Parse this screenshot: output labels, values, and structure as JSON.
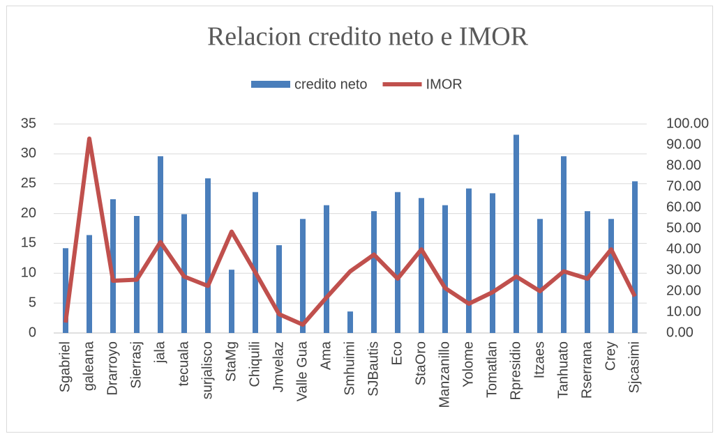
{
  "chart_data": {
    "type": "bar_line",
    "title": "Relacion credito neto e IMOR",
    "categories": [
      "Sgabriel",
      "galeana",
      "Drarroyo",
      "Sierrasj",
      "jala",
      "tecuala",
      "surjalisco",
      "StaMg",
      "Chiquili",
      "Jmvelaz",
      "Valle Gua",
      "Ama",
      "Smhuimi",
      "SJBautis",
      "Eco",
      "StaOro",
      "Manzanillo",
      "Yolome",
      "Tomatlan",
      "Rpresidio",
      "Itzaes",
      "Tanhuato",
      "Rserrana",
      "Crey",
      "Sjcasimi"
    ],
    "series": [
      {
        "name": "credito neto",
        "type": "bar",
        "color": "#4a7ebb",
        "axis": "y",
        "values": [
          14.2,
          16.4,
          22.4,
          19.6,
          29.6,
          19.9,
          25.9,
          10.6,
          23.6,
          14.7,
          19.1,
          21.4,
          3.6,
          20.4,
          23.6,
          22.6,
          21.4,
          24.2,
          23.4,
          33.2,
          19.1,
          29.6,
          20.4,
          19.1,
          25.4
        ]
      },
      {
        "name": "IMOR",
        "type": "line",
        "color": "#c0504d",
        "axis": "y2",
        "values": [
          5,
          93,
          25,
          25.5,
          43.5,
          27,
          22.5,
          48.5,
          29,
          9,
          4,
          17,
          29.5,
          37.5,
          26,
          40,
          21.5,
          14,
          19.5,
          27,
          20,
          29.5,
          26,
          40,
          17.5
        ]
      }
    ],
    "ylim": [
      0,
      35
    ],
    "yticks": [
      0,
      5,
      10,
      15,
      20,
      25,
      30,
      35
    ],
    "y2lim": [
      0,
      100
    ],
    "y2ticks": [
      {
        "value": 0,
        "label": "0.00"
      },
      {
        "value": 10,
        "label": "10.00"
      },
      {
        "value": 20,
        "label": "20.00"
      },
      {
        "value": 30,
        "label": "30.00"
      },
      {
        "value": 40,
        "label": "40.00"
      },
      {
        "value": 50,
        "label": "50.00"
      },
      {
        "value": 60,
        "label": "60.00"
      },
      {
        "value": 70,
        "label": "70.00"
      },
      {
        "value": 80,
        "label": "80.00"
      },
      {
        "value": 90,
        "label": "90.00"
      },
      {
        "value": 100,
        "label": "100.00"
      }
    ],
    "grid": true,
    "legend": "top"
  }
}
